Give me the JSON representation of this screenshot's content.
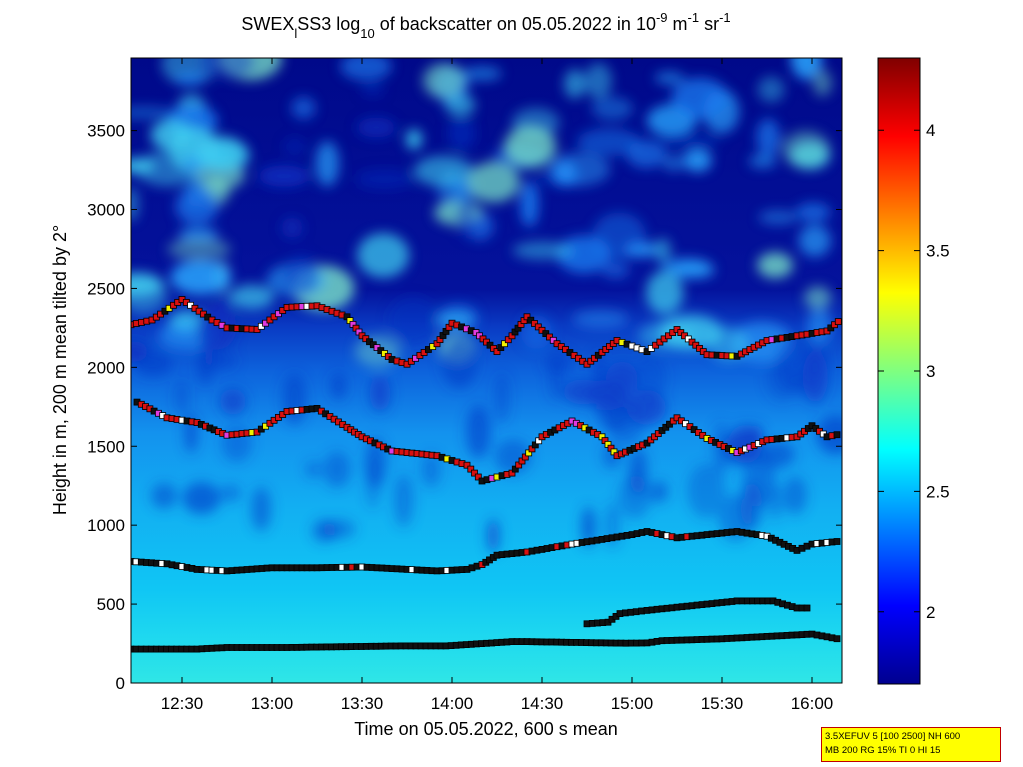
{
  "chart_data": {
    "type": "heatmap",
    "title": {
      "prefix": "SWEX",
      "sub1": "l",
      "mid": "SS3 log",
      "sub2": "10",
      "mid2": " of backscatter on 05.05.2022 in 10",
      "sup1": "-9",
      "mid3": " m",
      "sup2": "-1",
      "mid4": " sr",
      "sup3": "-1"
    },
    "xlabel": "Time on 05.05.2022, 600 s mean",
    "ylabel": "Height in m, 200 m mean tilted by 2°",
    "xlim": [
      "12:13",
      "16:10"
    ],
    "ylim": [
      0,
      3960
    ],
    "x_ticks": [
      "12:30",
      "13:00",
      "13:30",
      "14:00",
      "14:30",
      "15:00",
      "15:30",
      "16:00"
    ],
    "y_ticks": [
      0,
      500,
      1000,
      1500,
      2000,
      2500,
      3000,
      3500
    ],
    "colorbar": {
      "range": [
        1.7,
        4.3
      ],
      "ticks": [
        "2",
        "2.5",
        "3",
        "3.5",
        "4"
      ],
      "colormap": "jet"
    },
    "series": [
      {
        "layer": "lowest",
        "points": [
          [
            "12:13",
            215
          ],
          [
            "12:35",
            215
          ],
          [
            "12:45",
            225
          ],
          [
            "13:05",
            225
          ],
          [
            "13:43",
            235
          ],
          [
            "13:58",
            235
          ],
          [
            "14:20",
            262
          ],
          [
            "14:25",
            262
          ],
          [
            "14:58",
            252
          ],
          [
            "15:05",
            254
          ],
          [
            "15:10",
            268
          ],
          [
            "15:30",
            280
          ],
          [
            "15:50",
            300
          ],
          [
            "16:00",
            310
          ],
          [
            "16:10",
            275
          ]
        ]
      },
      {
        "layer": "mid",
        "points": [
          [
            "14:45",
            375
          ],
          [
            "14:52",
            385
          ],
          [
            "14:56",
            440
          ],
          [
            "15:05",
            460
          ],
          [
            "15:20",
            490
          ],
          [
            "15:35",
            520
          ],
          [
            "15:47",
            520
          ],
          [
            "15:55",
            475
          ],
          [
            "16:00",
            475
          ]
        ]
      },
      {
        "layer": "boundary",
        "points": [
          [
            "12:13",
            770
          ],
          [
            "12:25",
            755
          ],
          [
            "12:35",
            720
          ],
          [
            "12:45",
            710
          ],
          [
            "13:00",
            730
          ],
          [
            "13:15",
            730
          ],
          [
            "13:30",
            735
          ],
          [
            "13:45",
            720
          ],
          [
            "13:55",
            710
          ],
          [
            "14:05",
            720
          ],
          [
            "14:10",
            750
          ],
          [
            "14:15",
            810
          ],
          [
            "14:25",
            830
          ],
          [
            "14:40",
            880
          ],
          [
            "14:50",
            910
          ],
          [
            "15:00",
            940
          ],
          [
            "15:05",
            960
          ],
          [
            "15:15",
            920
          ],
          [
            "15:25",
            940
          ],
          [
            "15:35",
            960
          ],
          [
            "15:45",
            930
          ],
          [
            "15:55",
            840
          ],
          [
            "16:00",
            880
          ],
          [
            "16:10",
            900
          ]
        ]
      },
      {
        "layer": "upper",
        "points": [
          [
            "12:15",
            1780
          ],
          [
            "12:25",
            1680
          ],
          [
            "12:35",
            1650
          ],
          [
            "12:45",
            1570
          ],
          [
            "12:55",
            1590
          ],
          [
            "13:05",
            1720
          ],
          [
            "13:15",
            1740
          ],
          [
            "13:25",
            1620
          ],
          [
            "13:30",
            1560
          ],
          [
            "13:40",
            1470
          ],
          [
            "13:55",
            1440
          ],
          [
            "14:05",
            1380
          ],
          [
            "14:10",
            1280
          ],
          [
            "14:20",
            1330
          ],
          [
            "14:30",
            1560
          ],
          [
            "14:40",
            1660
          ],
          [
            "14:50",
            1560
          ],
          [
            "14:55",
            1440
          ],
          [
            "15:05",
            1520
          ],
          [
            "15:15",
            1680
          ],
          [
            "15:25",
            1550
          ],
          [
            "15:35",
            1460
          ],
          [
            "15:45",
            1540
          ],
          [
            "15:55",
            1560
          ],
          [
            "16:00",
            1630
          ],
          [
            "16:05",
            1560
          ],
          [
            "16:10",
            1580
          ]
        ]
      },
      {
        "layer": "top",
        "points": [
          [
            "12:13",
            2270
          ],
          [
            "12:20",
            2300
          ],
          [
            "12:30",
            2430
          ],
          [
            "12:40",
            2300
          ],
          [
            "12:45",
            2250
          ],
          [
            "12:55",
            2240
          ],
          [
            "13:05",
            2380
          ],
          [
            "13:15",
            2390
          ],
          [
            "13:25",
            2320
          ],
          [
            "13:30",
            2200
          ],
          [
            "13:40",
            2050
          ],
          [
            "13:45",
            2020
          ],
          [
            "13:55",
            2150
          ],
          [
            "14:00",
            2280
          ],
          [
            "14:08",
            2220
          ],
          [
            "14:15",
            2100
          ],
          [
            "14:20",
            2200
          ],
          [
            "14:25",
            2320
          ],
          [
            "14:35",
            2150
          ],
          [
            "14:45",
            2020
          ],
          [
            "14:55",
            2170
          ],
          [
            "15:05",
            2100
          ],
          [
            "15:15",
            2240
          ],
          [
            "15:25",
            2080
          ],
          [
            "15:35",
            2070
          ],
          [
            "15:45",
            2170
          ],
          [
            "15:55",
            2200
          ],
          [
            "16:05",
            2230
          ],
          [
            "16:10",
            2310
          ]
        ]
      }
    ]
  },
  "info_box": {
    "line1": "3.5XEFUV 5 [100 2500] NH 600",
    "line2": "MB 200 RG 15% TI 0 HI 15"
  }
}
